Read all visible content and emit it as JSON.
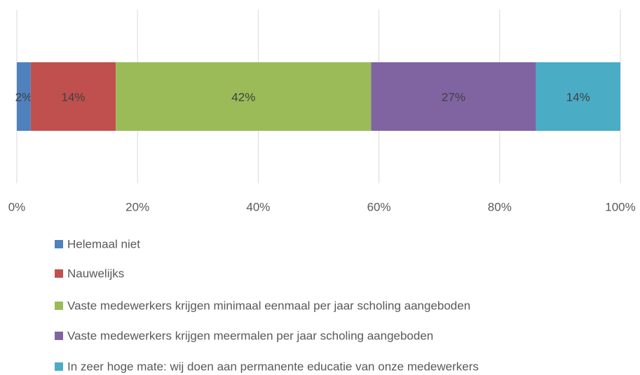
{
  "chart_data": {
    "type": "stacked_bar_horizontal",
    "categories": [
      null
    ],
    "series": [
      {
        "name": "Helemaal niet",
        "color": "#4f81bd",
        "values": [
          2.3
        ],
        "value_labels": [
          "2%"
        ]
      },
      {
        "name": "Nauwelijks",
        "color": "#c0504d",
        "values": [
          14.1
        ],
        "value_labels": [
          "14%"
        ]
      },
      {
        "name": "Vaste medewerkers krijgen minimaal eenmaal per jaar scholing aangeboden",
        "color": "#9bbb59",
        "values": [
          42.3
        ],
        "value_labels": [
          "42%"
        ]
      },
      {
        "name": "Vaste medewerkers krijgen meermalen per jaar scholing aangeboden",
        "color": "#8064a2",
        "values": [
          27.3
        ],
        "value_labels": [
          "27%"
        ]
      },
      {
        "name": "In zeer hoge mate: wij doen aan permanente educatie van onze medewerkers",
        "color": "#4bacc6",
        "values": [
          14.0
        ],
        "value_labels": [
          "14%"
        ]
      }
    ],
    "xlim": [
      0,
      100
    ],
    "xticks": [
      {
        "value": 0,
        "label": "0%"
      },
      {
        "value": 20,
        "label": "20%"
      },
      {
        "value": 40,
        "label": "40%"
      },
      {
        "value": 60,
        "label": "60%"
      },
      {
        "value": 80,
        "label": "80%"
      },
      {
        "value": 100,
        "label": "100%"
      }
    ],
    "grid": true,
    "legend": "bottom"
  }
}
